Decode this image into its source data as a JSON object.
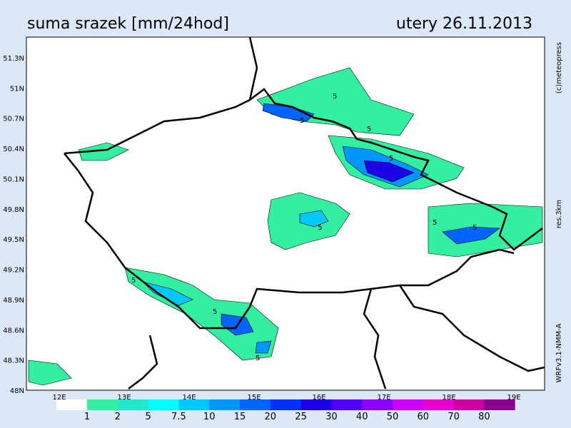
{
  "header": {
    "title": "suma srazek [mm/24hod]",
    "date": "utery 26.11.2013"
  },
  "side_labels": {
    "copyright": "(c)meteopress",
    "resolution": "res.3km",
    "model": "WRFv3.1-NMM-A"
  },
  "lat_labels": [
    "51.3N",
    "51N",
    "50.7N",
    "50.4N",
    "50.1N",
    "49.8N",
    "49.5N",
    "49.2N",
    "48.9N",
    "48.6N",
    "48.3N",
    "48N"
  ],
  "lon_labels": [
    "12E",
    "13E",
    "14E",
    "15E",
    "16E",
    "17E",
    "18E",
    "19E"
  ],
  "colorbar": {
    "labels": [
      "1",
      "2",
      "5",
      "7.5",
      "10",
      "15",
      "20",
      "25",
      "30",
      "40",
      "50",
      "60",
      "70",
      "80"
    ],
    "colors": [
      "#ffffff",
      "#33f0a0",
      "#20e8c8",
      "#00ffff",
      "#00c8ff",
      "#0096ff",
      "#0064ff",
      "#0032ff",
      "#1e00e6",
      "#5000ff",
      "#8c00ff",
      "#c800ff",
      "#e600d2",
      "#c800a0",
      "#8c0090"
    ]
  },
  "contour_labels": [
    "5",
    "5",
    "5",
    "5",
    "5",
    "5",
    "5",
    "5",
    "5",
    "5"
  ]
}
